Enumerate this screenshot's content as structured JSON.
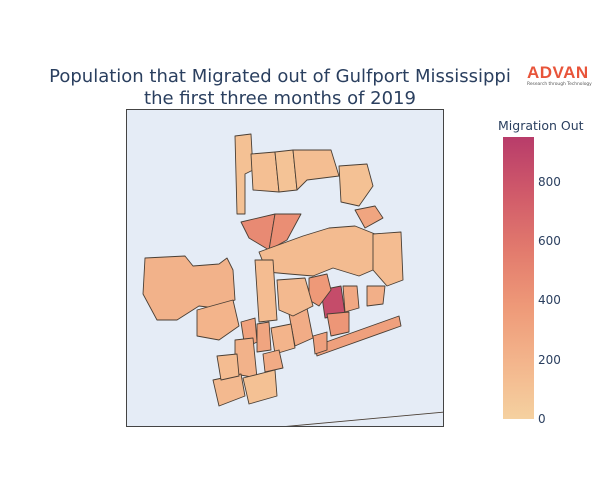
{
  "title": {
    "line1": "Population that Migrated out of Gulfport Mississippi",
    "line2": "the first three months of 2019"
  },
  "logo": {
    "name": "ADVAN",
    "tagline": "Research through Technology",
    "color": "#e8543a"
  },
  "colorbar": {
    "title": "Migration Out",
    "min": 0,
    "max": 950,
    "ticks": [
      0,
      200,
      400,
      600,
      800
    ],
    "tick_labels": [
      "0",
      "200",
      "400",
      "600",
      "800"
    ],
    "colors": [
      "#f5d1a0",
      "#f3b58c",
      "#ee9978",
      "#e27a6d",
      "#d05a6a",
      "#b83c6a"
    ]
  },
  "chart_data": {
    "type": "choropleth",
    "title": "Population that Migrated out of Gulfport Mississippi the first three months of 2019",
    "legend": "Migration Out (continuous colorscale, right)",
    "regions": [
      {
        "id": "west-large",
        "value": 210
      },
      {
        "id": "north-strip",
        "value": 110
      },
      {
        "id": "north-tract-2",
        "value": 120
      },
      {
        "id": "north-tract-3",
        "value": 95
      },
      {
        "id": "north-central",
        "value": 130
      },
      {
        "id": "northeast-a",
        "value": 110
      },
      {
        "id": "northeast-triangle",
        "value": 300
      },
      {
        "id": "central-red-left",
        "value": 470
      },
      {
        "id": "central-red-right",
        "value": 450
      },
      {
        "id": "central-large",
        "value": 150
      },
      {
        "id": "east-mid",
        "value": 140
      },
      {
        "id": "southwest",
        "value": 200
      },
      {
        "id": "south-center-a",
        "value": 320
      },
      {
        "id": "south-center-b",
        "value": 300
      },
      {
        "id": "south-center-c",
        "value": 210
      },
      {
        "id": "central-hotspot",
        "value": 850
      },
      {
        "id": "central-east-a",
        "value": 380
      },
      {
        "id": "central-east-b",
        "value": 280
      },
      {
        "id": "east-small",
        "value": 230
      },
      {
        "id": "coast-strip",
        "value": 330
      },
      {
        "id": "coast-tract-a",
        "value": 400
      },
      {
        "id": "coast-tract-b",
        "value": 250
      },
      {
        "id": "coast-tract-c",
        "value": 200
      },
      {
        "id": "south-west-a",
        "value": 160
      },
      {
        "id": "south-west-b",
        "value": 140
      },
      {
        "id": "south-sliver-a",
        "value": 260
      },
      {
        "id": "south-sliver-b",
        "value": 330
      },
      {
        "id": "south-bottom",
        "value": 110
      },
      {
        "id": "center-column",
        "value": 140
      },
      {
        "id": "center-mid",
        "value": 160
      }
    ]
  }
}
